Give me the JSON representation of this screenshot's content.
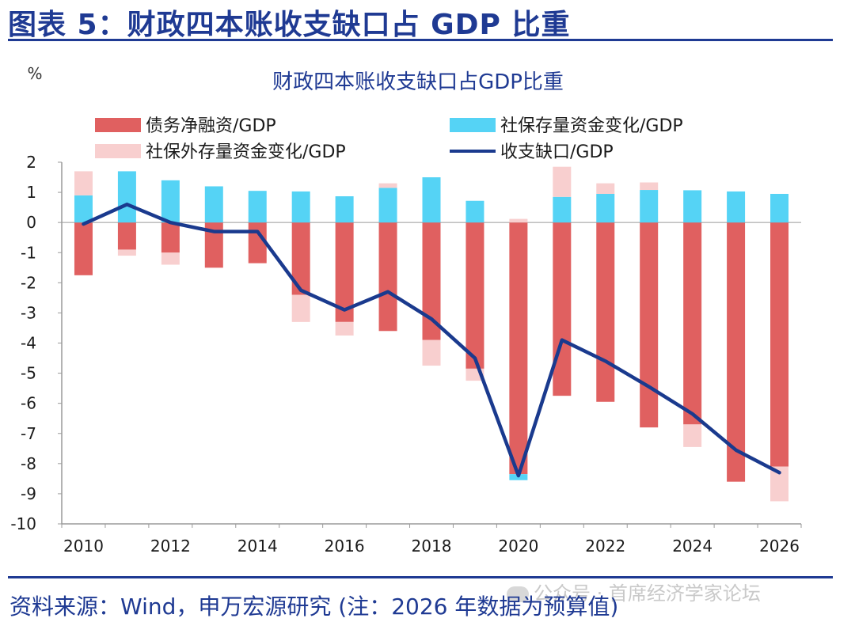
{
  "header": {
    "figure_title": "图表 5：财政四本账收支缺口占 GDP 比重"
  },
  "footer": {
    "source": "资料来源：Wind，申万宏源研究 (注：2026 年数据为预算值)",
    "watermark": "公众号 · 首席经济学家论坛"
  },
  "colors": {
    "debt": "#e06060",
    "social_change": "#55d3f5",
    "social_outside": "#f8cfcf",
    "deficit_line": "#1a3a8e",
    "accent": "#1f3a93"
  },
  "chart_data": {
    "type": "bar",
    "title": "财政四本账收支缺口占GDP比重",
    "ylabel": "%",
    "xlabel": "",
    "ylim": [
      -10,
      2
    ],
    "yticks": [
      "2",
      "1",
      "0",
      "-1",
      "-2",
      "-3",
      "-4",
      "-5",
      "-6",
      "-7",
      "-8",
      "-9",
      "-10"
    ],
    "ytick_values": [
      2,
      1,
      0,
      -1,
      -2,
      -3,
      -4,
      -5,
      -6,
      -7,
      -8,
      -9,
      -10
    ],
    "categories": [
      "2010",
      "2011",
      "2012",
      "2013",
      "2014",
      "2015",
      "2016",
      "2017",
      "2018",
      "2019",
      "2020",
      "2021",
      "2022",
      "2023",
      "2024",
      "2025",
      "2026"
    ],
    "xticklabels": [
      "2010",
      "",
      "2012",
      "",
      "2014",
      "",
      "2016",
      "",
      "2018",
      "",
      "2020",
      "",
      "2022",
      "",
      "2024",
      "",
      "2026"
    ],
    "legend_placement": "top",
    "stacked": true,
    "series": [
      {
        "name": "债务净融资/GDP",
        "kind": "bar",
        "values": [
          -1.75,
          -0.9,
          -1.0,
          -1.5,
          -1.35,
          -2.4,
          -3.3,
          -3.6,
          -3.9,
          -4.85,
          -8.35,
          -5.75,
          -5.95,
          -6.8,
          -6.7,
          -8.6,
          -8.1
        ]
      },
      {
        "name": "社保存量资金变化/GDP",
        "kind": "bar",
        "values": [
          0.9,
          1.7,
          1.4,
          1.2,
          1.05,
          1.03,
          0.87,
          1.15,
          1.5,
          0.72,
          -0.2,
          0.85,
          0.95,
          1.08,
          1.07,
          1.03,
          0.95
        ]
      },
      {
        "name": "社保外存量资金变化/GDP",
        "kind": "bar",
        "values": [
          0.8,
          -0.2,
          -0.4,
          0,
          0,
          -0.9,
          -0.45,
          0.15,
          -0.85,
          -0.4,
          0.12,
          1.0,
          0.35,
          0.25,
          -0.75,
          0,
          -1.15
        ]
      },
      {
        "name": "收支缺口/GDP",
        "kind": "line",
        "values": [
          -0.05,
          0.6,
          0.0,
          -0.3,
          -0.3,
          -2.25,
          -2.9,
          -2.3,
          -3.2,
          -4.5,
          -8.4,
          -3.9,
          -4.6,
          -5.45,
          -6.35,
          -7.55,
          -8.3
        ]
      }
    ]
  }
}
